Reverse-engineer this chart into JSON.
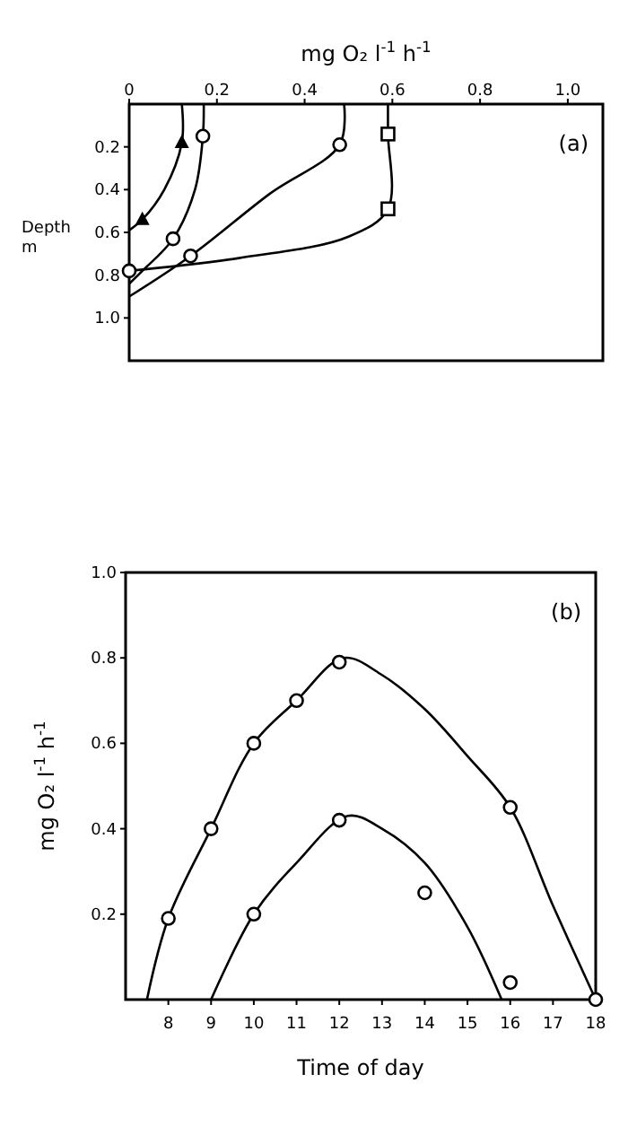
{
  "chart_data": [
    {
      "type": "line",
      "xlabel": "mg O₂ l$^{-1}$ h$^{-1}$",
      "ylabel": "Depth m",
      "annotations": [
        "(a)"
      ],
      "xlim": [
        0,
        1.08
      ],
      "xticks": [
        0,
        0.2,
        0.4,
        0.6,
        0.8,
        {
          "value": 1,
          "label": "1.0"
        }
      ],
      "ylim": [
        1.2,
        0
      ],
      "yticks": [
        0.2,
        0.4,
        0.6,
        0.8,
        {
          "value": 1,
          "label": "1.0"
        }
      ],
      "grid": false,
      "series": [
        {
          "color": "#000000",
          "marker": "none",
          "x": [
            0.12,
            0.12,
            0.08,
            0.03,
            0
          ],
          "values": [
            0,
            0.18,
            0.4,
            0.54,
            0.59
          ]
        },
        {
          "type": "line",
          "color": "#000000",
          "marker": "none",
          "x": [
            0.17,
            0.168,
            0.15,
            0.1,
            0.03,
            0
          ],
          "values": [
            0,
            0.15,
            0.4,
            0.63,
            0.78,
            0.84
          ]
        },
        {
          "type": "line",
          "color": "#000000",
          "marker": "none",
          "x": [
            0.49,
            0.48,
            0.32,
            0.14,
            0
          ],
          "values": [
            0,
            0.19,
            0.42,
            0.71,
            0.9
          ]
        },
        {
          "type": "line",
          "color": "#000000",
          "marker": "none",
          "x": [
            0.59,
            0.59,
            0.59,
            0.5,
            0.25,
            0
          ],
          "values": [
            0,
            0.14,
            0.49,
            0.62,
            0.72,
            0.78
          ]
        },
        {
          "type": "scatter",
          "color": "#000000",
          "marker": "triangle",
          "x": [
            0.12,
            0.03
          ],
          "values": [
            0.18,
            0.54
          ]
        },
        {
          "type": "scatter",
          "color": "#000000",
          "marker": "circle",
          "x": [
            0.168,
            0.1
          ],
          "values": [
            0.15,
            0.63
          ]
        },
        {
          "type": "scatter",
          "color": "#000000",
          "marker": "circle",
          "x": [
            0.48,
            0.14
          ],
          "values": [
            0.19,
            0.71
          ]
        },
        {
          "type": "scatter",
          "color": "#000000",
          "marker": "square",
          "x": [
            0.59,
            0.59
          ],
          "values": [
            0.14,
            0.49
          ]
        },
        {
          "type": "scatter",
          "color": "#000000",
          "marker": "circle",
          "x": [
            0
          ],
          "values": [
            0.78
          ]
        }
      ]
    },
    {
      "type": "line",
      "xlabel": "Time of day",
      "ylabel": "mg O₂ l$^{-1}$ h$^{-1}$",
      "annotations": [
        "(b)"
      ],
      "xlim": [
        7,
        18
      ],
      "xticks": [
        8,
        9,
        10,
        11,
        12,
        13,
        14,
        15,
        16,
        17,
        18
      ],
      "ylim": [
        0,
        1
      ],
      "yticks": [
        0.2,
        0.4,
        0.6,
        0.8,
        {
          "value": 1,
          "label": "1.0"
        }
      ],
      "grid": false,
      "series": [
        {
          "color": "#000000",
          "marker": "none",
          "x": [
            7.5,
            8,
            9,
            10,
            11,
            12.1,
            13,
            14,
            15,
            16,
            17,
            18
          ],
          "values": [
            0,
            0.19,
            0.4,
            0.6,
            0.7,
            0.8,
            0.76,
            0.68,
            0.57,
            0.45,
            0.22,
            0
          ]
        },
        {
          "type": "line",
          "color": "#000000",
          "marker": "none",
          "x": [
            9,
            10,
            11,
            12.2,
            13,
            14,
            15,
            15.8
          ],
          "values": [
            0,
            0.2,
            0.32,
            0.43,
            0.4,
            0.32,
            0.17,
            0
          ]
        },
        {
          "type": "scatter",
          "color": "#000000",
          "marker": "circle",
          "x": [
            8,
            9,
            10,
            11,
            12,
            16,
            18
          ],
          "values": [
            0.19,
            0.4,
            0.6,
            0.7,
            0.79,
            0.45,
            0
          ]
        },
        {
          "type": "scatter",
          "color": "#000000",
          "marker": "circle",
          "x": [
            10,
            12,
            14,
            16
          ],
          "values": [
            0.2,
            0.42,
            0.25,
            0.04
          ]
        }
      ]
    }
  ]
}
